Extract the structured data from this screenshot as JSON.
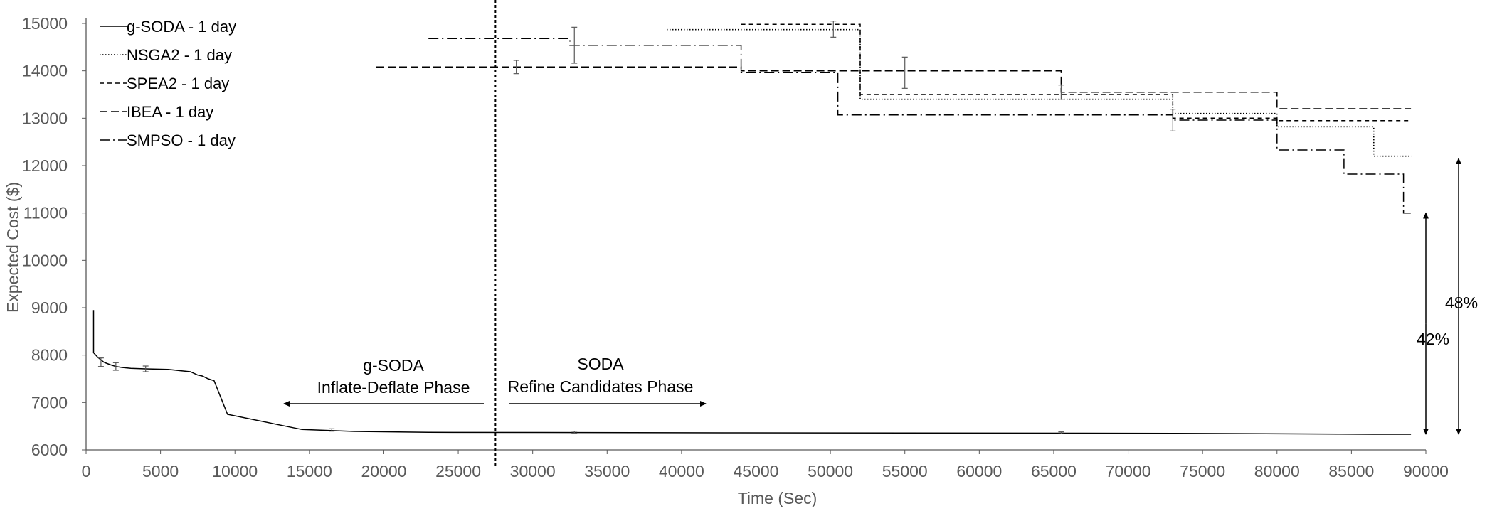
{
  "chart_data": {
    "type": "line",
    "title": "",
    "xlabel": "Time (Sec)",
    "ylabel": "Expected Cost ($)",
    "xlim": [
      0,
      90000
    ],
    "ylim": [
      6000,
      15000
    ],
    "xticks": [
      0,
      5000,
      10000,
      15000,
      20000,
      25000,
      30000,
      35000,
      40000,
      45000,
      50000,
      55000,
      60000,
      65000,
      70000,
      75000,
      80000,
      85000,
      90000
    ],
    "yticks": [
      6000,
      7000,
      8000,
      9000,
      10000,
      11000,
      12000,
      13000,
      14000,
      15000
    ],
    "grid": false,
    "legend_position": "top-left",
    "series": [
      {
        "name": "g-SODA - 1 day",
        "style": "solid",
        "color": "#000000",
        "x": [
          500,
          500,
          800,
          1200,
          1600,
          2000,
          2400,
          3000,
          4000,
          5500,
          7000,
          7500,
          7800,
          8200,
          8600,
          9500,
          14500,
          18000,
          23000,
          44000,
          73000,
          86500,
          89000
        ],
        "y": [
          8950,
          8050,
          7950,
          7850,
          7800,
          7760,
          7740,
          7720,
          7710,
          7700,
          7650,
          7580,
          7560,
          7500,
          7460,
          6750,
          6430,
          6390,
          6370,
          6360,
          6350,
          6330,
          6330
        ],
        "error_bars": [
          {
            "x": 1000,
            "y": 7850,
            "err": 90
          },
          {
            "x": 2000,
            "y": 7760,
            "err": 80
          },
          {
            "x": 4000,
            "y": 7710,
            "err": 60
          },
          {
            "x": 16500,
            "y": 6420,
            "err": 25
          },
          {
            "x": 32800,
            "y": 6375,
            "err": 20
          },
          {
            "x": 65500,
            "y": 6360,
            "err": 20
          }
        ]
      },
      {
        "name": "NSGA2 - 1 day",
        "style": "dotted",
        "color": "#000000",
        "x": [
          39000,
          52000,
          52000,
          55000,
          55000,
          73000,
          73000,
          80000,
          80000,
          86500,
          86500,
          89000
        ],
        "y": [
          14870,
          14870,
          13400,
          13400,
          13400,
          13400,
          13100,
          13100,
          12820,
          12820,
          12200,
          12200
        ]
      },
      {
        "name": "SPEA2 - 1 day",
        "style": "dashed",
        "color": "#000000",
        "x": [
          44000,
          52000,
          52000,
          55000,
          55000,
          73000,
          73000,
          80000,
          80000,
          89000
        ],
        "y": [
          14980,
          14980,
          13500,
          13500,
          13500,
          13500,
          13000,
          13000,
          12950,
          12950
        ]
      },
      {
        "name": "IBEA - 1 day",
        "style": "dash-long",
        "color": "#000000",
        "x": [
          19500,
          44000,
          44000,
          65500,
          65500,
          80000,
          80000,
          89000
        ],
        "y": [
          14080,
          14080,
          14000,
          14000,
          13550,
          13550,
          13200,
          13200
        ]
      },
      {
        "name": "SMPSO - 1 day",
        "style": "dash-dot",
        "color": "#000000",
        "x": [
          23000,
          32500,
          32500,
          44000,
          44000,
          50500,
          50500,
          73000,
          73000,
          80000,
          80000,
          84500,
          84500,
          88500,
          88500,
          89000
        ],
        "y": [
          14680,
          14680,
          14540,
          14540,
          13960,
          13960,
          13070,
          13070,
          12960,
          12960,
          12330,
          12330,
          11820,
          11820,
          11000,
          11000
        ],
        "error_bars": [
          {
            "x": 28900,
            "y": 14080,
            "err": 140
          },
          {
            "x": 32800,
            "y": 14540,
            "err": 380
          },
          {
            "x": 50200,
            "y": 14880,
            "err": 170
          },
          {
            "x": 55000,
            "y": 13960,
            "err": 330
          },
          {
            "x": 65500,
            "y": 13550,
            "err": 150
          },
          {
            "x": 73000,
            "y": 12960,
            "err": 230
          }
        ]
      }
    ],
    "annotations": {
      "phase_divider_x": 27500,
      "left_phase": {
        "line1": "g-SODA",
        "line2": "Inflate-Deflate Phase",
        "arrow": "left"
      },
      "right_phase": {
        "line1": "SODA",
        "line2": "Refine Candidates Phase",
        "arrow": "right"
      },
      "pct_42": {
        "label": "42%",
        "x": 90000,
        "from": 6330,
        "to": 11000
      },
      "pct_48": {
        "label": "48%",
        "x": 92200,
        "from": 6330,
        "to": 12150
      }
    }
  }
}
